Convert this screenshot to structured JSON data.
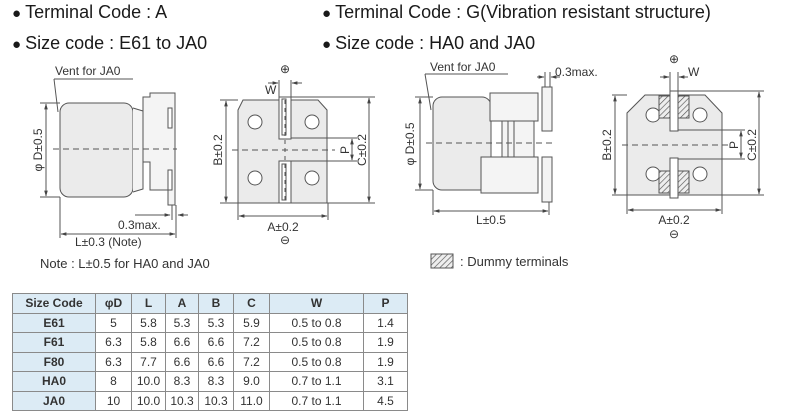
{
  "left": {
    "terminal_code": "Terminal Code : A",
    "size_code": "Size code : E61 to JA0",
    "vent_label": "Vent for JA0",
    "dim_d": "φ D±0.5",
    "dim_max": "0.3max.",
    "dim_l": "L±0.3 (Note)",
    "note": "Note : L±0.5 for HA0 and JA0",
    "dim_b": "B±0.2",
    "dim_c": "C±0.2",
    "dim_a": "A±0.2",
    "dim_w": "W",
    "dim_p": "P",
    "plus": "⊕",
    "minus": "⊖"
  },
  "right": {
    "terminal_code": "Terminal Code : G(Vibration resistant structure)",
    "size_code": "Size code : HA0 and JA0",
    "vent_label": "Vent for JA0",
    "dim_d": "φ D±0.5",
    "dim_max": "0.3max.",
    "dim_l": "L±0.5",
    "dim_b": "B±0.2",
    "dim_c": "C±0.2",
    "dim_a": "A±0.2",
    "dim_w": "W",
    "dim_p": "P",
    "plus": "⊕",
    "minus": "⊖",
    "legend": ": Dummy terminals"
  },
  "table": {
    "headers": [
      "Size Code",
      "φD",
      "L",
      "A",
      "B",
      "C",
      "W",
      "P"
    ],
    "rows": [
      [
        "E61",
        "5",
        "5.8",
        "5.3",
        "5.3",
        "5.9",
        "0.5 to 0.8",
        "1.4"
      ],
      [
        "F61",
        "6.3",
        "5.8",
        "6.6",
        "6.6",
        "7.2",
        "0.5 to 0.8",
        "1.9"
      ],
      [
        "F80",
        "6.3",
        "7.7",
        "6.6",
        "6.6",
        "7.2",
        "0.5 to 0.8",
        "1.9"
      ],
      [
        "HA0",
        "8",
        "10.0",
        "8.3",
        "8.3",
        "9.0",
        "0.7 to 1.1",
        "3.1"
      ],
      [
        "JA0",
        "10",
        "10.0",
        "10.3",
        "10.3",
        "11.0",
        "0.7 to 1.1",
        "4.5"
      ]
    ]
  },
  "colors": {
    "header_bg": "#dcebf5",
    "line": "#555555"
  }
}
